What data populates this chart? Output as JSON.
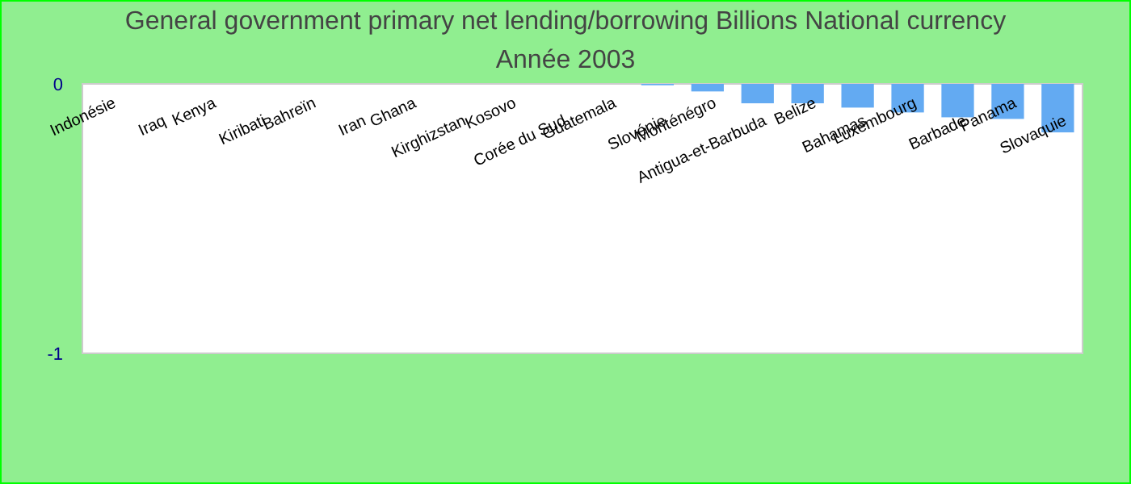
{
  "chart_data": {
    "type": "bar",
    "title": "General government primary net lending/borrowing Billions National currency",
    "subtitle": "Année 2003",
    "categories": [
      "Indonésie",
      "Iraq",
      "Kenya",
      "Kiribati",
      "Bahreïn",
      "Iran",
      "Ghana",
      "Kirghizstan",
      "Kosovo",
      "Corée du Sud",
      "Guatemala",
      "Slovénie",
      "Monténégro",
      "Antigua-et-Barbuda",
      "Belize",
      "Bahamas",
      "Luxembourg",
      "Barbade",
      "Panama",
      "Slovaquie"
    ],
    "values": [
      0,
      0,
      0,
      0,
      0,
      0,
      0,
      0,
      0,
      0,
      0,
      -0.005,
      -0.028,
      -0.072,
      -0.072,
      -0.088,
      -0.106,
      -0.124,
      -0.13,
      -0.18
    ],
    "color": "#63aaf2",
    "ylim": [
      -1,
      0
    ],
    "yticks": [
      0,
      -1
    ],
    "grid": false
  }
}
